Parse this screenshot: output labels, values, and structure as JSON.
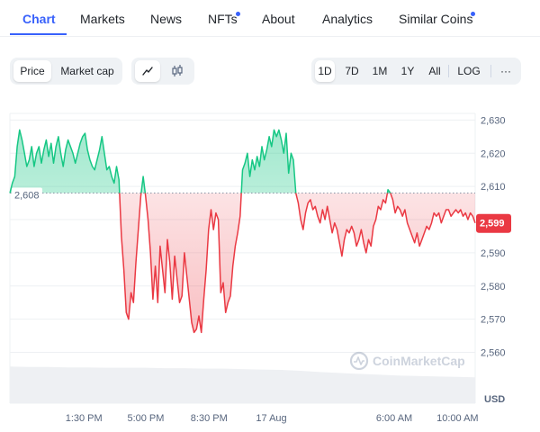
{
  "tabs": [
    {
      "label": "Chart",
      "active": true,
      "dot": false
    },
    {
      "label": "Markets",
      "active": false,
      "dot": false
    },
    {
      "label": "News",
      "active": false,
      "dot": false
    },
    {
      "label": "NFTs",
      "active": false,
      "dot": true
    },
    {
      "label": "About",
      "active": false,
      "dot": false
    },
    {
      "label": "Analytics",
      "active": false,
      "dot": false
    },
    {
      "label": "Similar Coins",
      "active": false,
      "dot": true
    }
  ],
  "toolbar": {
    "price_label": "Price",
    "marketcap_label": "Market cap",
    "line_icon": "line-chart-icon",
    "candle_icon": "candlestick-icon",
    "ranges": [
      "1D",
      "7D",
      "1M",
      "1Y",
      "All"
    ],
    "active_range": "1D",
    "log_label": "LOG",
    "more_label": "···"
  },
  "colors": {
    "accent": "#3861fb",
    "up": "#16c784",
    "down": "#ea3943",
    "grid": "#eef0f3"
  },
  "chart_data": {
    "type": "line",
    "baseline": 2608,
    "baseline_label": "2,608",
    "current_value": 2599,
    "current_label": "2,599",
    "unit": "USD",
    "watermark": "CoinMarketCap",
    "ylim": [
      2555,
      2632
    ],
    "y_ticks": [
      2630,
      2620,
      2610,
      2600,
      2590,
      2580,
      2570,
      2560
    ],
    "y_tick_labels": [
      "2,630",
      "2,620",
      "2,610",
      "2,600",
      "2,590",
      "2,580",
      "2,570",
      "2,560"
    ],
    "x_ticks": [
      {
        "label": "1:30 PM",
        "t": 0.159
      },
      {
        "label": "5:00 PM",
        "t": 0.292
      },
      {
        "label": "8:30 PM",
        "t": 0.428
      },
      {
        "label": "17 Aug",
        "t": 0.562
      },
      {
        "label": "6:00 AM",
        "t": 0.826
      },
      {
        "label": "10:00 AM",
        "t": 0.962
      }
    ],
    "series": [
      {
        "values": [
          2608,
          2611,
          2613,
          2622,
          2627,
          2624,
          2620,
          2616,
          2618,
          2622,
          2616,
          2620,
          2622,
          2617,
          2621,
          2624,
          2619,
          2623,
          2617,
          2622,
          2625,
          2620,
          2616,
          2621,
          2624,
          2622,
          2620,
          2617,
          2620,
          2623,
          2625,
          2626,
          2621,
          2618,
          2616,
          2615,
          2618,
          2621,
          2625,
          2620,
          2615,
          2616,
          2613,
          2611,
          2616,
          2612,
          2595,
          2585,
          2572,
          2570,
          2578,
          2575,
          2587,
          2597,
          2607,
          2613,
          2607,
          2600,
          2590,
          2576,
          2586,
          2575,
          2592,
          2585,
          2578,
          2594,
          2587,
          2576,
          2589,
          2582,
          2575,
          2577,
          2590,
          2583,
          2576,
          2569,
          2566,
          2567,
          2571,
          2566,
          2576,
          2585,
          2597,
          2603,
          2597,
          2602,
          2600,
          2578,
          2581,
          2572,
          2575,
          2577,
          2586,
          2592,
          2596,
          2601,
          2615,
          2617,
          2620,
          2613,
          2618,
          2615,
          2619,
          2616,
          2622,
          2618,
          2621,
          2625,
          2622,
          2627,
          2625,
          2627,
          2624,
          2620,
          2626,
          2614,
          2620,
          2618,
          2608,
          2605,
          2600,
          2597,
          2602,
          2605,
          2606,
          2603,
          2604,
          2601,
          2599,
          2603,
          2600,
          2604,
          2600,
          2596,
          2599,
          2597,
          2593,
          2589,
          2594,
          2597,
          2596,
          2598,
          2596,
          2592,
          2594,
          2597,
          2593,
          2590,
          2594,
          2592,
          2598,
          2600,
          2604,
          2603,
          2606,
          2605,
          2609,
          2608,
          2606,
          2602,
          2604,
          2603,
          2601,
          2603,
          2599,
          2597,
          2595,
          2593,
          2596,
          2592,
          2594,
          2596,
          2598,
          2597,
          2599,
          2602,
          2601,
          2602,
          2599,
          2601,
          2603,
          2603,
          2601,
          2602,
          2603,
          2602,
          2603,
          2601,
          2602,
          2600,
          2602,
          2601,
          2599
        ]
      }
    ],
    "volume": [
      0.85,
      0.84,
      0.84,
      0.83,
      0.83,
      0.82,
      0.82,
      0.82,
      0.81,
      0.81,
      0.8,
      0.8,
      0.79,
      0.78,
      0.77,
      0.75,
      0.72,
      0.7,
      0.68,
      0.66,
      0.64,
      0.63,
      0.62,
      0.61,
      0.6
    ]
  }
}
